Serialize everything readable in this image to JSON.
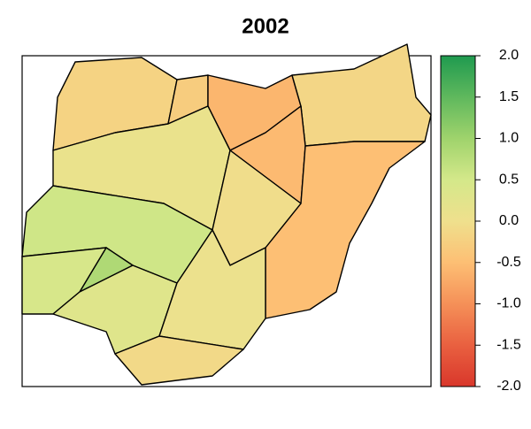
{
  "chart_data": {
    "type": "choropleth",
    "title": "2002",
    "values": [
      -0.2,
      -0.3,
      -0.6,
      -0.15,
      -0.55,
      -0.5,
      0.1,
      -0.05,
      0.55,
      0.85,
      0.45,
      0.3,
      0.05,
      -0.1
    ],
    "colormap": [
      "#d9372b",
      "#e96040",
      "#f59058",
      "#fdbf74",
      "#efe08d",
      "#d4e88a",
      "#9fd36c",
      "#5fb85d",
      "#1f9a4f"
    ],
    "clim": [
      -2,
      2
    ],
    "cticks": [
      {
        "value": -2,
        "label": "-2.0"
      },
      -1.5,
      {
        "value": -1,
        "label": "-1.0"
      },
      -0.5,
      {
        "value": 0,
        "label": "0.0"
      },
      0.5,
      {
        "value": 1,
        "label": "1.0"
      },
      1.5,
      {
        "value": 2,
        "label": "2.0"
      }
    ]
  }
}
